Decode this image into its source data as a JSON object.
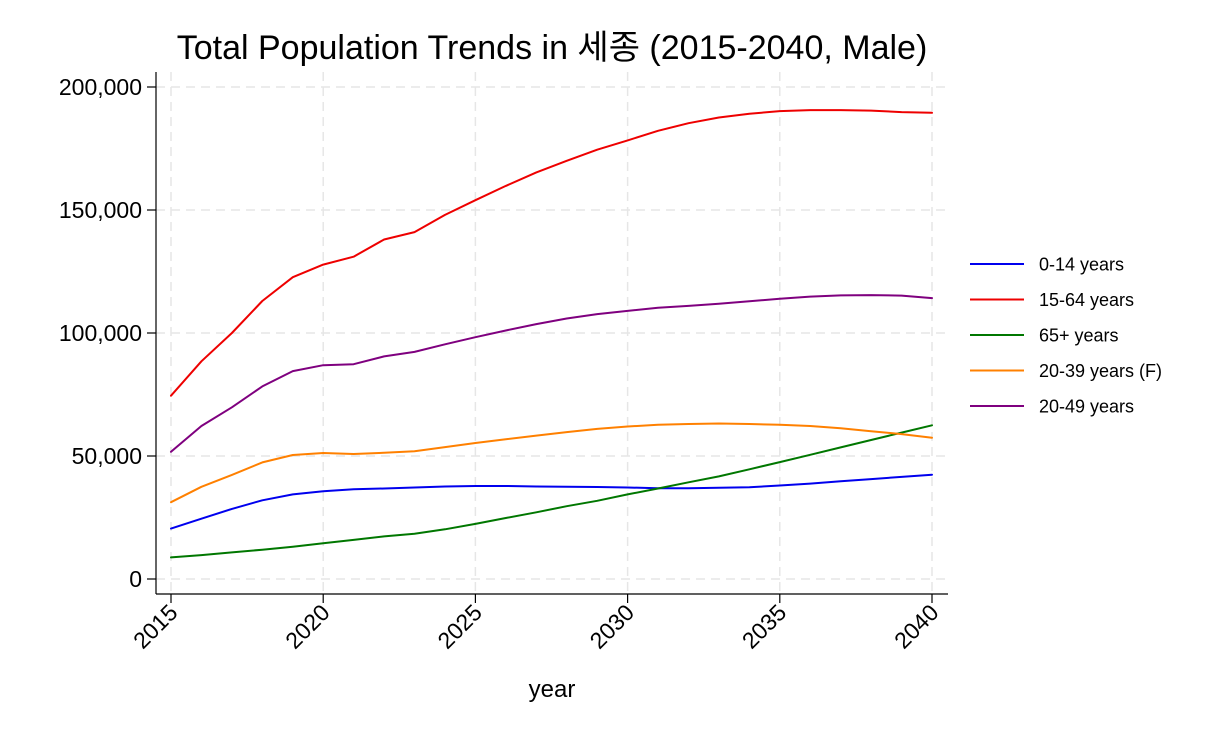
{
  "chart_data": {
    "type": "line",
    "title": "Total Population Trends in 세종 (2015-2040, Male)",
    "xlabel": "year",
    "ylabel": "",
    "xlim": [
      2015,
      2040
    ],
    "ylim": [
      0,
      200000
    ],
    "xticks": [
      2015,
      2020,
      2025,
      2030,
      2035,
      2040
    ],
    "xtick_labels": [
      "2015",
      "2020",
      "2025",
      "2030",
      "2035",
      "2040"
    ],
    "yticks": [
      0,
      50000,
      100000,
      150000,
      200000
    ],
    "ytick_labels": [
      "0",
      "50,000",
      "100,000",
      "150,000",
      "200,000"
    ],
    "grid": true,
    "legend_position": "right",
    "x": [
      2015,
      2016,
      2017,
      2018,
      2019,
      2020,
      2021,
      2022,
      2023,
      2024,
      2025,
      2026,
      2027,
      2028,
      2029,
      2030,
      2031,
      2032,
      2033,
      2034,
      2035,
      2036,
      2037,
      2038,
      2039,
      2040
    ],
    "series": [
      {
        "name": "0-14 years",
        "color": "#0000ee",
        "values": [
          20500,
          24500,
          28500,
          32000,
          34400,
          35700,
          36500,
          36800,
          37200,
          37600,
          37800,
          37800,
          37600,
          37500,
          37400,
          37200,
          36900,
          36900,
          37100,
          37300,
          38000,
          38800,
          39700,
          40600,
          41500,
          42400
        ]
      },
      {
        "name": "15-64 years",
        "color": "#ee0000",
        "values": [
          74500,
          88500,
          100000,
          113000,
          122700,
          127800,
          131000,
          138000,
          141000,
          148000,
          154000,
          159800,
          165300,
          170000,
          174500,
          178300,
          182200,
          185300,
          187600,
          189100,
          190200,
          190600,
          190600,
          190400,
          189800,
          189500
        ]
      },
      {
        "name": "65+ years",
        "color": "#007700",
        "values": [
          8800,
          9700,
          10800,
          11900,
          13100,
          14500,
          15900,
          17300,
          18400,
          20200,
          22400,
          24800,
          27100,
          29600,
          31800,
          34400,
          36800,
          39300,
          41700,
          44600,
          47500,
          50500,
          53500,
          56500,
          59500,
          62500
        ]
      },
      {
        "name": "20-39 years (F)",
        "color": "#ff8000",
        "values": [
          31200,
          37500,
          42300,
          47400,
          50400,
          51200,
          50800,
          51300,
          51900,
          53600,
          55300,
          56800,
          58300,
          59700,
          61000,
          62000,
          62700,
          63000,
          63200,
          63000,
          62700,
          62200,
          61300,
          60100,
          58900,
          57400
        ]
      },
      {
        "name": "20-49 years",
        "color": "#7f007f",
        "values": [
          51700,
          62200,
          69800,
          78300,
          84500,
          86900,
          87300,
          90500,
          92300,
          95400,
          98300,
          101000,
          103600,
          105900,
          107700,
          109000,
          110300,
          111000,
          111900,
          112900,
          113900,
          114800,
          115300,
          115400,
          115200,
          114200
        ]
      }
    ]
  }
}
